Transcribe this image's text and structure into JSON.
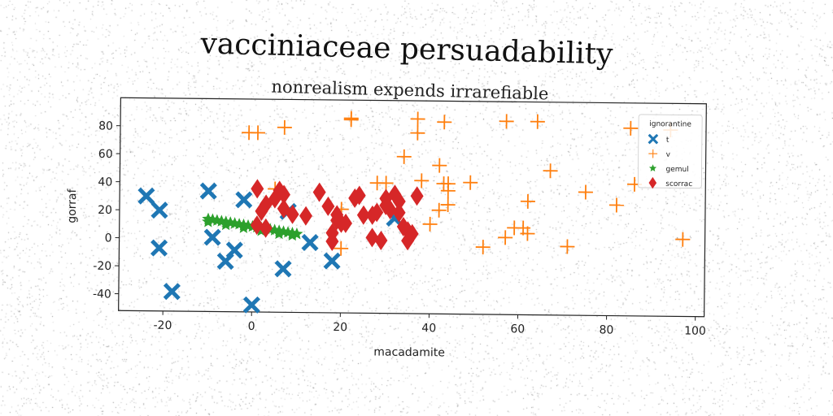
{
  "chart_data": {
    "type": "scatter",
    "title": "vacciniaceae persuadability",
    "subtitle": "nonrealism expends irrarefiable",
    "xlabel": "macadamite",
    "ylabel": "gorraf",
    "xlim": [
      -30,
      102
    ],
    "ylim": [
      -52,
      100
    ],
    "xticks": [
      -20,
      0,
      20,
      40,
      60,
      80,
      100
    ],
    "yticks": [
      -40,
      -20,
      0,
      20,
      40,
      60,
      80
    ],
    "grid": false,
    "legend": {
      "title": "ignorantine",
      "placement": "top-right"
    },
    "series": [
      {
        "name": "t",
        "marker": "x-filled",
        "color": "#1f77b4",
        "points": [
          [
            -24,
            30
          ],
          [
            -21,
            20
          ],
          [
            -21,
            -7
          ],
          [
            -18,
            -38
          ],
          [
            -10,
            34
          ],
          [
            -9,
            1
          ],
          [
            -6,
            -16
          ],
          [
            -4,
            -8
          ],
          [
            -2,
            28
          ],
          [
            0,
            -47
          ],
          [
            7,
            -21
          ],
          [
            8,
            20
          ],
          [
            13,
            -2
          ],
          [
            18,
            -15
          ],
          [
            32,
            16
          ]
        ]
      },
      {
        "name": "v",
        "marker": "plus",
        "color": "#ff7f0e",
        "points": [
          [
            -1,
            76
          ],
          [
            1,
            76
          ],
          [
            7,
            80
          ],
          [
            5,
            36
          ],
          [
            22,
            87
          ],
          [
            22,
            86
          ],
          [
            34,
            60
          ],
          [
            37,
            87
          ],
          [
            37,
            77
          ],
          [
            43,
            85
          ],
          [
            42,
            54
          ],
          [
            28,
            41
          ],
          [
            30,
            41
          ],
          [
            38,
            43
          ],
          [
            43,
            41
          ],
          [
            44,
            36
          ],
          [
            44,
            26
          ],
          [
            42,
            22
          ],
          [
            44,
            41
          ],
          [
            49,
            42
          ],
          [
            40,
            12
          ],
          [
            20,
            22
          ],
          [
            20,
            -6
          ],
          [
            52,
            -4
          ],
          [
            57,
            3
          ],
          [
            59,
            10
          ],
          [
            61,
            10
          ],
          [
            62,
            6
          ],
          [
            62,
            29
          ],
          [
            57,
            86
          ],
          [
            64,
            86
          ],
          [
            67,
            51
          ],
          [
            71,
            -3
          ],
          [
            75,
            36
          ],
          [
            82,
            27
          ],
          [
            86,
            42
          ],
          [
            85,
            82
          ],
          [
            97,
            3
          ],
          [
            94,
            81
          ]
        ]
      },
      {
        "name": "gemul",
        "marker": "star",
        "color": "#2ca02c",
        "points": [
          [
            -10,
            14
          ],
          [
            -8,
            13
          ],
          [
            -6,
            12
          ],
          [
            -4,
            11
          ],
          [
            -2,
            10
          ],
          [
            0,
            9
          ],
          [
            2,
            8
          ],
          [
            4,
            7
          ],
          [
            6,
            6
          ],
          [
            8,
            5
          ],
          [
            10,
            4
          ],
          [
            -9,
            13.5
          ],
          [
            -7,
            12.5
          ],
          [
            -5,
            11.5
          ],
          [
            -3,
            10.5
          ],
          [
            -1,
            9.5
          ],
          [
            1,
            8.5
          ],
          [
            3,
            7.5
          ],
          [
            5,
            6.5
          ],
          [
            7,
            5.5
          ],
          [
            9,
            4.5
          ],
          [
            -10,
            12
          ],
          [
            -6,
            10
          ],
          [
            -2,
            8
          ],
          [
            2,
            6
          ],
          [
            6,
            4
          ],
          [
            9,
            3
          ]
        ]
      },
      {
        "name": "scorrac",
        "marker": "diamond",
        "color": "#d62728",
        "points": [
          [
            1,
            36
          ],
          [
            2,
            20
          ],
          [
            1,
            10
          ],
          [
            3,
            8
          ],
          [
            3,
            25
          ],
          [
            5,
            29
          ],
          [
            6,
            35
          ],
          [
            7,
            32
          ],
          [
            7,
            22
          ],
          [
            9,
            18
          ],
          [
            12,
            17
          ],
          [
            15,
            34
          ],
          [
            17,
            24
          ],
          [
            18,
            5
          ],
          [
            18,
            -1
          ],
          [
            19,
            14
          ],
          [
            19,
            18
          ],
          [
            20,
            12
          ],
          [
            21,
            12
          ],
          [
            23,
            30
          ],
          [
            24,
            32
          ],
          [
            25,
            18
          ],
          [
            27,
            18
          ],
          [
            27,
            2
          ],
          [
            28,
            20
          ],
          [
            29,
            0
          ],
          [
            30,
            25
          ],
          [
            30,
            30
          ],
          [
            31,
            22
          ],
          [
            32,
            33
          ],
          [
            33,
            28
          ],
          [
            33,
            20
          ],
          [
            34,
            10
          ],
          [
            35,
            0
          ],
          [
            35,
            7
          ],
          [
            36,
            5
          ],
          [
            37,
            32
          ]
        ]
      }
    ]
  }
}
